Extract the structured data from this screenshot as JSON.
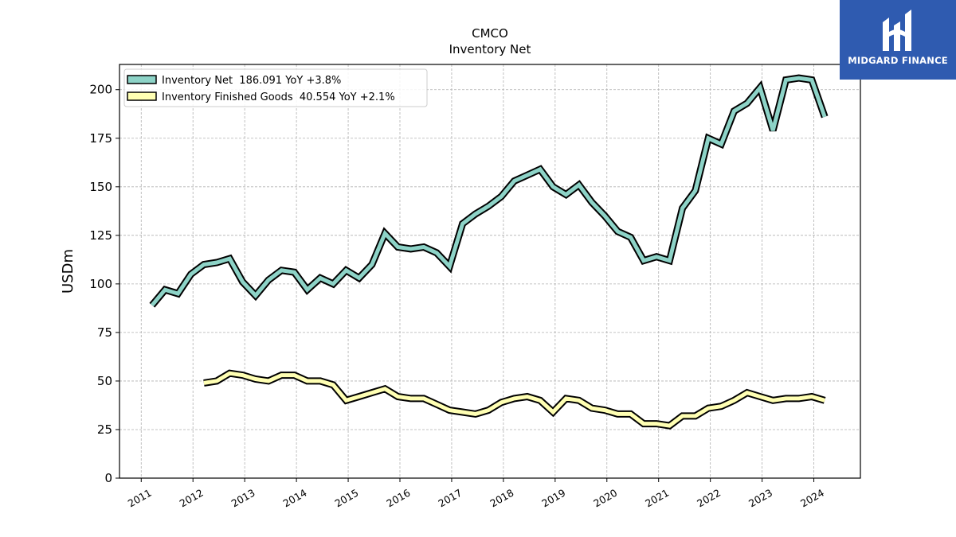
{
  "chart_data": {
    "type": "line",
    "title": "CMCO",
    "subtitle": "Inventory Net",
    "xlabel": "",
    "ylabel": "USDm",
    "xlim": [
      2010.58,
      2024.9
    ],
    "ylim": [
      0,
      213
    ],
    "x_ticks": [
      "2011",
      "2012",
      "2013",
      "2014",
      "2015",
      "2016",
      "2017",
      "2018",
      "2019",
      "2020",
      "2021",
      "2022",
      "2023",
      "2024"
    ],
    "y_ticks": [
      0,
      25,
      50,
      75,
      100,
      125,
      150,
      175,
      200
    ],
    "grid": true,
    "legend_position": "top-left",
    "series": [
      {
        "name": "Inventory Net  186.091 YoY +3.8%",
        "color": "#8dd3c7",
        "x": [
          2011.21,
          2011.46,
          2011.71,
          2011.96,
          2012.21,
          2012.46,
          2012.71,
          2012.96,
          2013.21,
          2013.46,
          2013.71,
          2013.96,
          2014.21,
          2014.46,
          2014.71,
          2014.96,
          2015.21,
          2015.46,
          2015.71,
          2015.96,
          2016.21,
          2016.46,
          2016.71,
          2016.96,
          2017.21,
          2017.46,
          2017.71,
          2017.96,
          2018.21,
          2018.46,
          2018.71,
          2018.96,
          2019.21,
          2019.46,
          2019.71,
          2019.96,
          2020.21,
          2020.46,
          2020.71,
          2020.96,
          2021.21,
          2021.46,
          2021.71,
          2021.96,
          2022.21,
          2022.46,
          2022.71,
          2022.96,
          2023.21,
          2023.46,
          2023.71,
          2023.96,
          2024.21
        ],
        "values": [
          89,
          97,
          95,
          105,
          110,
          111,
          113,
          101,
          94,
          102,
          107,
          106,
          97,
          103,
          100,
          107,
          103,
          110,
          126,
          119,
          118,
          119,
          116,
          109,
          131,
          136,
          140,
          145,
          153,
          156,
          159,
          150,
          146,
          151,
          142,
          135,
          127,
          124,
          112,
          114,
          112,
          139,
          148,
          175,
          172,
          189,
          193,
          201,
          179,
          205,
          206,
          205,
          186
        ]
      },
      {
        "name": "Inventory Finished Goods  40.554 YoY +2.1%",
        "color": "#ffffb3",
        "x": [
          2012.21,
          2012.46,
          2012.71,
          2012.96,
          2013.21,
          2013.46,
          2013.71,
          2013.96,
          2014.21,
          2014.46,
          2014.71,
          2014.96,
          2015.21,
          2015.46,
          2015.71,
          2015.96,
          2016.21,
          2016.46,
          2016.71,
          2016.96,
          2017.21,
          2017.46,
          2017.71,
          2017.96,
          2018.21,
          2018.46,
          2018.71,
          2018.96,
          2019.21,
          2019.46,
          2019.71,
          2019.96,
          2020.21,
          2020.46,
          2020.71,
          2020.96,
          2021.21,
          2021.46,
          2021.71,
          2021.96,
          2022.21,
          2022.46,
          2022.71,
          2022.96,
          2023.21,
          2023.46,
          2023.71,
          2023.96,
          2024.21
        ],
        "values": [
          49,
          50,
          54,
          53,
          51,
          50,
          53,
          53,
          50,
          50,
          48,
          40,
          42,
          44,
          46,
          42,
          41,
          41,
          38,
          35,
          34,
          33,
          35,
          39,
          41,
          42,
          40,
          34,
          41,
          40,
          36,
          35,
          33,
          33,
          28,
          28,
          27,
          32,
          32,
          36,
          37,
          40,
          44,
          42,
          40,
          41,
          41,
          42,
          40
        ]
      }
    ]
  },
  "logo": {
    "text": "MIDGARD FINANCE",
    "background": "#2f5bb0"
  }
}
